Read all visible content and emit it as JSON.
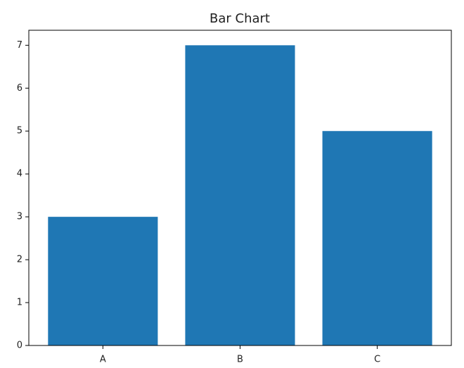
{
  "chart_data": {
    "type": "bar",
    "title": "Bar Chart",
    "categories": [
      "A",
      "B",
      "C"
    ],
    "values": [
      3,
      7,
      5
    ],
    "color": "#1f77b4",
    "ylim": [
      0,
      7.35
    ],
    "yticks": [
      0,
      1,
      2,
      3,
      4,
      5,
      6,
      7
    ],
    "grid": false
  }
}
